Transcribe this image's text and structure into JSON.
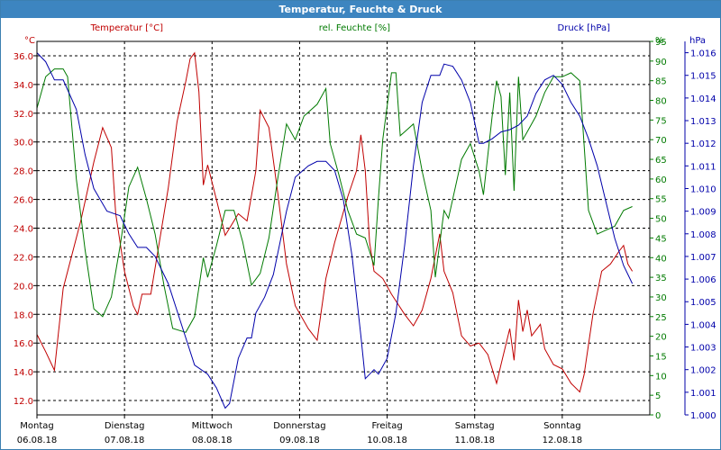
{
  "window": {
    "title": "Temperatur, Feuchte & Druck"
  },
  "chart_data": {
    "type": "line",
    "title": "Temperatur, Feuchte & Druck",
    "grid": true,
    "colors": {
      "temperature": "#c00000",
      "humidity": "#007a00",
      "pressure": "#0000aa",
      "grid": "#000000"
    },
    "x_range": [
      0,
      7
    ],
    "x_ticks": [
      {
        "x": 0,
        "day": "Montag",
        "date": "06.08.18"
      },
      {
        "x": 1,
        "day": "Dienstag",
        "date": "07.08.18"
      },
      {
        "x": 2,
        "day": "Mittwoch",
        "date": "08.08.18"
      },
      {
        "x": 3,
        "day": "Donnerstag",
        "date": "09.08.18"
      },
      {
        "x": 4,
        "day": "Freitag",
        "date": "10.08.18"
      },
      {
        "x": 5,
        "day": "Samstag",
        "date": "11.08.18"
      },
      {
        "x": 6,
        "day": "Sonntag",
        "date": "12.08.18"
      }
    ],
    "axes": {
      "temperature": {
        "unit": "°C",
        "label": "Temperatur [°C]",
        "range": [
          11,
          37
        ],
        "ticks": [
          "12.0",
          "14.0",
          "16.0",
          "18.0",
          "20.0",
          "22.0",
          "24.0",
          "26.0",
          "28.0",
          "30.0",
          "32.0",
          "34.0",
          "36.0"
        ]
      },
      "humidity": {
        "unit": "%",
        "label": "rel. Feuchte [%]",
        "range": [
          0,
          95
        ],
        "ticks": [
          "0",
          "5",
          "10",
          "15",
          "20",
          "25",
          "30",
          "35",
          "40",
          "45",
          "50",
          "55",
          "60",
          "65",
          "70",
          "75",
          "80",
          "85",
          "90",
          "95"
        ]
      },
      "pressure": {
        "unit": "hPa",
        "label": "Druck [hPa]",
        "range": [
          1.0,
          1.0165
        ],
        "ticks": [
          "1.000",
          "1.001",
          "1.002",
          "1.003",
          "1.004",
          "1.005",
          "1.006",
          "1.007",
          "1.008",
          "1.009",
          "1.010",
          "1.011",
          "1.012",
          "1.013",
          "1.014",
          "1.015",
          "1.016"
        ]
      }
    },
    "series": [
      {
        "name": "Temperatur [°C]",
        "axis": "temperature",
        "color": "#c00000",
        "points": [
          [
            0,
            16.6
          ],
          [
            0.1,
            15.4
          ],
          [
            0.2,
            14.1
          ],
          [
            0.3,
            19.8
          ],
          [
            0.5,
            24.5
          ],
          [
            0.65,
            28.6
          ],
          [
            0.75,
            31.0
          ],
          [
            0.85,
            29.6
          ],
          [
            0.9,
            25.0
          ],
          [
            1.0,
            21.0
          ],
          [
            1.1,
            18.6
          ],
          [
            1.15,
            18.0
          ],
          [
            1.2,
            19.4
          ],
          [
            1.3,
            19.4
          ],
          [
            1.5,
            26.8
          ],
          [
            1.6,
            31.4
          ],
          [
            1.7,
            34.2
          ],
          [
            1.75,
            35.8
          ],
          [
            1.8,
            36.2
          ],
          [
            1.85,
            33.5
          ],
          [
            1.9,
            27.0
          ],
          [
            1.95,
            28.4
          ],
          [
            2.05,
            26.0
          ],
          [
            2.15,
            23.5
          ],
          [
            2.3,
            25.0
          ],
          [
            2.4,
            24.5
          ],
          [
            2.5,
            28.0
          ],
          [
            2.55,
            32.2
          ],
          [
            2.65,
            31.0
          ],
          [
            2.75,
            26.5
          ],
          [
            2.85,
            21.5
          ],
          [
            2.95,
            18.6
          ],
          [
            3.1,
            17.0
          ],
          [
            3.2,
            16.2
          ],
          [
            3.3,
            20.5
          ],
          [
            3.4,
            23.0
          ],
          [
            3.55,
            26.2
          ],
          [
            3.65,
            28.0
          ],
          [
            3.7,
            30.5
          ],
          [
            3.75,
            28.0
          ],
          [
            3.8,
            23.0
          ],
          [
            3.85,
            21.0
          ],
          [
            3.95,
            20.5
          ],
          [
            4.05,
            19.4
          ],
          [
            4.2,
            18.0
          ],
          [
            4.3,
            17.2
          ],
          [
            4.4,
            18.3
          ],
          [
            4.5,
            20.5
          ],
          [
            4.6,
            23.6
          ],
          [
            4.65,
            21.0
          ],
          [
            4.75,
            19.5
          ],
          [
            4.85,
            16.5
          ],
          [
            4.95,
            15.8
          ],
          [
            5.05,
            16.0
          ],
          [
            5.15,
            15.2
          ],
          [
            5.25,
            13.2
          ],
          [
            5.3,
            14.5
          ],
          [
            5.4,
            17.0
          ],
          [
            5.45,
            14.8
          ],
          [
            5.5,
            19.0
          ],
          [
            5.55,
            16.8
          ],
          [
            5.6,
            18.3
          ],
          [
            5.65,
            16.5
          ],
          [
            5.75,
            17.3
          ],
          [
            5.8,
            15.6
          ],
          [
            5.9,
            14.5
          ],
          [
            6.0,
            14.2
          ],
          [
            6.1,
            13.2
          ],
          [
            6.2,
            12.6
          ],
          [
            6.25,
            13.8
          ],
          [
            6.35,
            18.0
          ],
          [
            6.45,
            21.0
          ],
          [
            6.55,
            21.5
          ],
          [
            6.65,
            22.4
          ],
          [
            6.7,
            22.8
          ],
          [
            6.75,
            21.5
          ],
          [
            6.8,
            21.0
          ]
        ]
      },
      {
        "name": "rel. Feuchte [%]",
        "axis": "humidity",
        "color": "#007a00",
        "points": [
          [
            0,
            78
          ],
          [
            0.1,
            86
          ],
          [
            0.2,
            88
          ],
          [
            0.3,
            88
          ],
          [
            0.35,
            86
          ],
          [
            0.45,
            60
          ],
          [
            0.55,
            42
          ],
          [
            0.65,
            27
          ],
          [
            0.75,
            25
          ],
          [
            0.85,
            30
          ],
          [
            0.95,
            43
          ],
          [
            1.05,
            58
          ],
          [
            1.15,
            63
          ],
          [
            1.25,
            55
          ],
          [
            1.35,
            46
          ],
          [
            1.45,
            33
          ],
          [
            1.55,
            22
          ],
          [
            1.7,
            21
          ],
          [
            1.8,
            25
          ],
          [
            1.9,
            40
          ],
          [
            1.95,
            35
          ],
          [
            2.05,
            43
          ],
          [
            2.15,
            52
          ],
          [
            2.25,
            52
          ],
          [
            2.35,
            44
          ],
          [
            2.45,
            33
          ],
          [
            2.55,
            36
          ],
          [
            2.65,
            45
          ],
          [
            2.75,
            60
          ],
          [
            2.85,
            74
          ],
          [
            2.95,
            70
          ],
          [
            3.05,
            76
          ],
          [
            3.2,
            79
          ],
          [
            3.3,
            83
          ],
          [
            3.35,
            69
          ],
          [
            3.45,
            61
          ],
          [
            3.55,
            52
          ],
          [
            3.65,
            46
          ],
          [
            3.75,
            45
          ],
          [
            3.85,
            38
          ],
          [
            3.9,
            55
          ],
          [
            3.95,
            70
          ],
          [
            4.05,
            87
          ],
          [
            4.1,
            87
          ],
          [
            4.15,
            71
          ],
          [
            4.2,
            72
          ],
          [
            4.3,
            74
          ],
          [
            4.4,
            62
          ],
          [
            4.5,
            52
          ],
          [
            4.55,
            35
          ],
          [
            4.65,
            52
          ],
          [
            4.7,
            50
          ],
          [
            4.85,
            65
          ],
          [
            4.95,
            69
          ],
          [
            5.05,
            62
          ],
          [
            5.1,
            56
          ],
          [
            5.2,
            76
          ],
          [
            5.25,
            85
          ],
          [
            5.3,
            81
          ],
          [
            5.35,
            61
          ],
          [
            5.4,
            82
          ],
          [
            5.45,
            57
          ],
          [
            5.5,
            86
          ],
          [
            5.55,
            70
          ],
          [
            5.6,
            72
          ],
          [
            5.7,
            76
          ],
          [
            5.8,
            82
          ],
          [
            5.9,
            86
          ],
          [
            6.0,
            86
          ],
          [
            6.1,
            87
          ],
          [
            6.2,
            85
          ],
          [
            6.3,
            52
          ],
          [
            6.4,
            46
          ],
          [
            6.5,
            47
          ],
          [
            6.6,
            48
          ],
          [
            6.7,
            52
          ],
          [
            6.8,
            53
          ]
        ]
      },
      {
        "name": "Druck [hPa]",
        "axis": "pressure",
        "color": "#0000aa",
        "points": [
          [
            0,
            1.016
          ],
          [
            0.1,
            1.0156
          ],
          [
            0.2,
            1.0148
          ],
          [
            0.3,
            1.0148
          ],
          [
            0.45,
            1.0135
          ],
          [
            0.55,
            1.0115
          ],
          [
            0.65,
            1.01
          ],
          [
            0.8,
            1.009
          ],
          [
            0.95,
            1.0088
          ],
          [
            1.05,
            1.008
          ],
          [
            1.15,
            1.0074
          ],
          [
            1.25,
            1.0074
          ],
          [
            1.35,
            1.007
          ],
          [
            1.5,
            1.0058
          ],
          [
            1.65,
            1.004
          ],
          [
            1.8,
            1.0022
          ],
          [
            1.95,
            1.0018
          ],
          [
            2.05,
            1.0012
          ],
          [
            2.15,
            1.0003
          ],
          [
            2.2,
            1.0005
          ],
          [
            2.3,
            1.0025
          ],
          [
            2.4,
            1.0034
          ],
          [
            2.45,
            1.0034
          ],
          [
            2.5,
            1.0045
          ],
          [
            2.6,
            1.0052
          ],
          [
            2.7,
            1.0062
          ],
          [
            2.85,
            1.009
          ],
          [
            2.95,
            1.0105
          ],
          [
            3.1,
            1.011
          ],
          [
            3.2,
            1.0112
          ],
          [
            3.3,
            1.0112
          ],
          [
            3.4,
            1.0108
          ],
          [
            3.5,
            1.0095
          ],
          [
            3.6,
            1.007
          ],
          [
            3.7,
            1.0035
          ],
          [
            3.75,
            1.0016
          ],
          [
            3.85,
            1.002
          ],
          [
            3.9,
            1.0018
          ],
          [
            4.0,
            1.0025
          ],
          [
            4.1,
            1.0045
          ],
          [
            4.2,
            1.0075
          ],
          [
            4.3,
            1.011
          ],
          [
            4.4,
            1.0138
          ],
          [
            4.5,
            1.015
          ],
          [
            4.6,
            1.015
          ],
          [
            4.65,
            1.0155
          ],
          [
            4.75,
            1.0154
          ],
          [
            4.85,
            1.0148
          ],
          [
            4.95,
            1.0138
          ],
          [
            5.05,
            1.012
          ],
          [
            5.1,
            1.012
          ],
          [
            5.2,
            1.0122
          ],
          [
            5.3,
            1.0125
          ],
          [
            5.4,
            1.0126
          ],
          [
            5.5,
            1.0128
          ],
          [
            5.6,
            1.0132
          ],
          [
            5.7,
            1.0142
          ],
          [
            5.8,
            1.0148
          ],
          [
            5.9,
            1.015
          ],
          [
            6.0,
            1.0146
          ],
          [
            6.1,
            1.0138
          ],
          [
            6.2,
            1.0132
          ],
          [
            6.3,
            1.0122
          ],
          [
            6.4,
            1.011
          ],
          [
            6.5,
            1.0094
          ],
          [
            6.6,
            1.0078
          ],
          [
            6.7,
            1.0066
          ],
          [
            6.8,
            1.0058
          ]
        ]
      }
    ]
  }
}
